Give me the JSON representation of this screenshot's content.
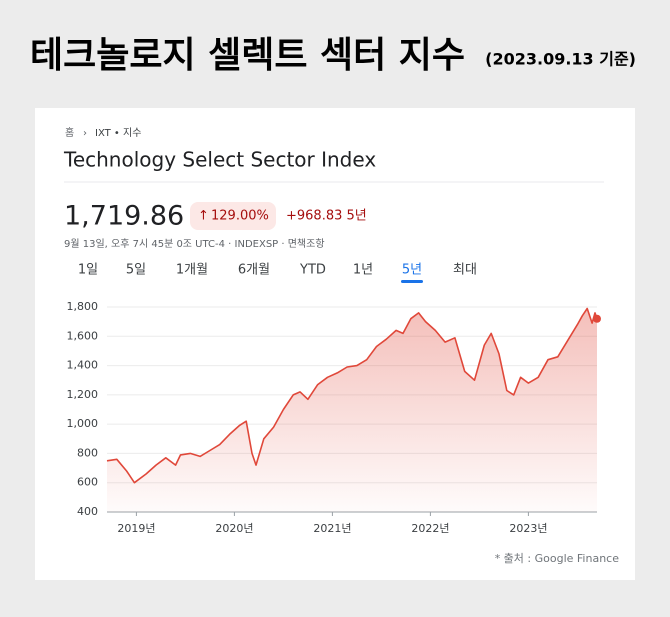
{
  "page_title": "테크놀로지 셀렉트 섹터 지수",
  "page_subtitle": "(2023.09.13 기준)",
  "breadcrumb": {
    "home": "홈",
    "symbol": "IXT • 지수"
  },
  "quote": {
    "name": "Technology Select Sector Index",
    "price": "1,719.86",
    "change_pct": "129.00%",
    "change_abs": "+968.83 5년",
    "info": "9월 13일, 오후 7시 45분 0조 UTC-4 · INDEXSP · 면책조항"
  },
  "tabs": [
    "1일",
    "5일",
    "1개월",
    "6개월",
    "YTD",
    "1년",
    "5년",
    "최대"
  ],
  "active_tab": 6,
  "source": "* 출처 : Google Finance",
  "chart_data": {
    "type": "area",
    "color": "#e0483a",
    "grid": true,
    "x": [
      2018.7,
      2018.8,
      2018.9,
      2018.98,
      2019.1,
      2019.2,
      2019.3,
      2019.4,
      2019.45,
      2019.55,
      2019.65,
      2019.75,
      2019.85,
      2019.95,
      2020.05,
      2020.12,
      2020.18,
      2020.22,
      2020.3,
      2020.4,
      2020.5,
      2020.6,
      2020.67,
      2020.75,
      2020.85,
      2020.95,
      2021.05,
      2021.15,
      2021.25,
      2021.35,
      2021.45,
      2021.55,
      2021.65,
      2021.72,
      2021.8,
      2021.88,
      2021.95,
      2022.05,
      2022.15,
      2022.25,
      2022.35,
      2022.45,
      2022.55,
      2022.62,
      2022.7,
      2022.78,
      2022.85,
      2022.92,
      2023.0,
      2023.1,
      2023.2,
      2023.3,
      2023.4,
      2023.5,
      2023.55,
      2023.6,
      2023.65,
      2023.68,
      2023.7
    ],
    "values": [
      750,
      760,
      680,
      600,
      660,
      720,
      770,
      720,
      790,
      800,
      780,
      820,
      860,
      930,
      990,
      1020,
      800,
      720,
      900,
      980,
      1100,
      1200,
      1220,
      1170,
      1270,
      1320,
      1350,
      1390,
      1400,
      1440,
      1530,
      1580,
      1640,
      1620,
      1720,
      1760,
      1700,
      1640,
      1560,
      1590,
      1360,
      1300,
      1540,
      1620,
      1480,
      1230,
      1200,
      1320,
      1280,
      1320,
      1440,
      1460,
      1570,
      1680,
      1740,
      1790,
      1690,
      1760,
      1719.86
    ],
    "xlim": [
      2018.7,
      2023.7
    ],
    "xticks": [
      {
        "value": 2019,
        "label": "2019년"
      },
      {
        "value": 2020,
        "label": "2020년"
      },
      {
        "value": 2021,
        "label": "2021년"
      },
      {
        "value": 2022,
        "label": "2022년"
      },
      {
        "value": 2023,
        "label": "2023년"
      }
    ],
    "ylim": [
      400,
      1800
    ],
    "yticks": [
      {
        "value": 400,
        "label": "400"
      },
      {
        "value": 600,
        "label": "600"
      },
      {
        "value": 800,
        "label": "800"
      },
      {
        "value": 1000,
        "label": "1,000"
      },
      {
        "value": 1200,
        "label": "1,200"
      },
      {
        "value": 1400,
        "label": "1,400"
      },
      {
        "value": 1600,
        "label": "1,600"
      },
      {
        "value": 1800,
        "label": "1,800"
      }
    ]
  }
}
